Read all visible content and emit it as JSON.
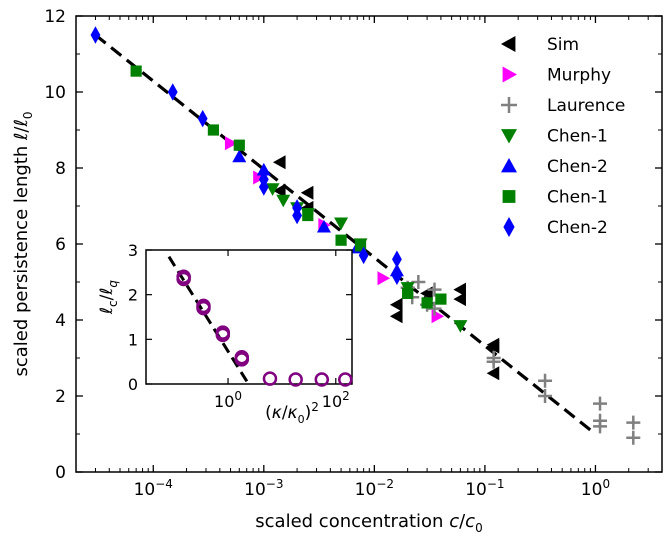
{
  "chart_data": [
    {
      "type": "scatter",
      "xlabel": "scaled concentration c/c0",
      "ylabel": "scaled persistence length ℓ/ℓ0",
      "xscale": "log",
      "xlim": [
        2e-05,
        4
      ],
      "ylim": [
        0,
        12
      ],
      "x_ticks": [
        {
          "value": 0.0001,
          "base": "10",
          "exp": "−4"
        },
        {
          "value": 0.001,
          "base": "10",
          "exp": "−3"
        },
        {
          "value": 0.01,
          "base": "10",
          "exp": "−2"
        },
        {
          "value": 0.1,
          "base": "10",
          "exp": "−1"
        },
        {
          "value": 1,
          "base": "10",
          "exp": "0"
        }
      ],
      "y_ticks": [
        "0",
        "2",
        "4",
        "6",
        "8",
        "10",
        "12"
      ],
      "legend_position": "top-right",
      "fit_line": {
        "style": "dashed",
        "color": "#000000",
        "points": [
          [
            3e-05,
            11.5
          ],
          [
            1,
            1.0
          ]
        ]
      },
      "series": [
        {
          "name": "Sim",
          "marker": "triangle-left",
          "color": "#000000",
          "points": [
            [
              0.0014,
              8.15
            ],
            [
              0.0014,
              7.4
            ],
            [
              0.0025,
              7.35
            ],
            [
              0.0025,
              6.95
            ],
            [
              0.016,
              4.1
            ],
            [
              0.016,
              4.4
            ],
            [
              0.03,
              4.7
            ],
            [
              0.06,
              4.8
            ],
            [
              0.06,
              4.55
            ],
            [
              0.12,
              3.3
            ],
            [
              0.12,
              2.6
            ],
            [
              0.12,
              3.35
            ]
          ]
        },
        {
          "name": "Murphy",
          "marker": "triangle-right",
          "color": "#ff00ff",
          "points": [
            [
              0.0005,
              8.65
            ],
            [
              0.0009,
              7.75
            ],
            [
              0.0035,
              6.5
            ],
            [
              0.012,
              5.1
            ],
            [
              0.037,
              4.1
            ]
          ]
        },
        {
          "name": "Laurence",
          "marker": "plus",
          "color": "#808080",
          "points": [
            [
              0.02,
              4.85
            ],
            [
              0.022,
              4.6
            ],
            [
              0.025,
              5.0
            ],
            [
              0.03,
              4.4
            ],
            [
              0.035,
              4.3
            ],
            [
              0.035,
              4.8
            ],
            [
              0.12,
              3.0
            ],
            [
              0.12,
              2.9
            ],
            [
              0.35,
              2.4
            ],
            [
              0.35,
              2.0
            ],
            [
              1.1,
              1.8
            ],
            [
              1.1,
              1.35
            ],
            [
              1.1,
              1.2
            ],
            [
              2.2,
              1.3
            ],
            [
              2.2,
              0.9
            ]
          ]
        },
        {
          "name": "Chen-1",
          "marker": "triangle-down",
          "color": "#008000",
          "points": [
            [
              0.0012,
              7.45
            ],
            [
              0.0015,
              7.15
            ],
            [
              0.002,
              6.95
            ],
            [
              0.0025,
              6.8
            ],
            [
              0.005,
              6.55
            ],
            [
              0.0075,
              6.0
            ],
            [
              0.02,
              4.85
            ],
            [
              0.06,
              3.85
            ]
          ]
        },
        {
          "name": "Chen-2",
          "marker": "triangle-up",
          "color": "#0000ff",
          "points": [
            [
              0.0006,
              8.3
            ],
            [
              0.001,
              7.95
            ],
            [
              0.0035,
              6.45
            ],
            [
              0.007,
              5.9
            ],
            [
              0.016,
              5.3
            ]
          ]
        },
        {
          "name": "Chen-1",
          "marker": "square",
          "color": "#008000",
          "points": [
            [
              7e-05,
              10.55
            ],
            [
              0.00035,
              9.0
            ],
            [
              0.0006,
              8.6
            ],
            [
              0.0025,
              6.75
            ],
            [
              0.005,
              6.1
            ],
            [
              0.0075,
              5.95
            ],
            [
              0.02,
              4.7
            ],
            [
              0.03,
              4.45
            ],
            [
              0.04,
              4.55
            ]
          ]
        },
        {
          "name": "Chen-2",
          "marker": "diamond",
          "color": "#0000ff",
          "points": [
            [
              3e-05,
              11.5
            ],
            [
              0.00015,
              10.0
            ],
            [
              0.00028,
              9.3
            ],
            [
              0.001,
              7.7
            ],
            [
              0.001,
              7.5
            ],
            [
              0.002,
              6.75
            ],
            [
              0.002,
              6.95
            ],
            [
              0.008,
              5.7
            ],
            [
              0.016,
              5.6
            ],
            [
              0.016,
              5.15
            ]
          ]
        }
      ]
    },
    {
      "type": "scatter",
      "inset": true,
      "xlabel": "(κ/κ0)2",
      "ylabel": "ℓc/ℓq",
      "xscale": "log",
      "xlim": [
        0.03,
        200
      ],
      "ylim": [
        0,
        3
      ],
      "x_ticks": [
        {
          "value": 1,
          "base": "10",
          "exp": "0"
        },
        {
          "value": 100,
          "base": "10",
          "exp": "2"
        }
      ],
      "y_ticks": [
        "0",
        "1",
        "2",
        "3"
      ],
      "fit_line": {
        "style": "dashed",
        "color": "#000000",
        "points": [
          [
            0.08,
            2.85
          ],
          [
            2.4,
            0
          ]
        ]
      },
      "series": [
        {
          "name": "",
          "marker": "circle-open",
          "color": "#800080",
          "points": [
            [
              0.15,
              2.4
            ],
            [
              0.15,
              2.35
            ],
            [
              0.35,
              1.75
            ],
            [
              0.35,
              1.7
            ],
            [
              0.8,
              1.15
            ],
            [
              0.8,
              1.1
            ],
            [
              1.8,
              0.6
            ],
            [
              1.8,
              0.55
            ],
            [
              6,
              0.12
            ],
            [
              18,
              0.1
            ],
            [
              55,
              0.1
            ],
            [
              150,
              0.1
            ]
          ]
        }
      ]
    }
  ]
}
